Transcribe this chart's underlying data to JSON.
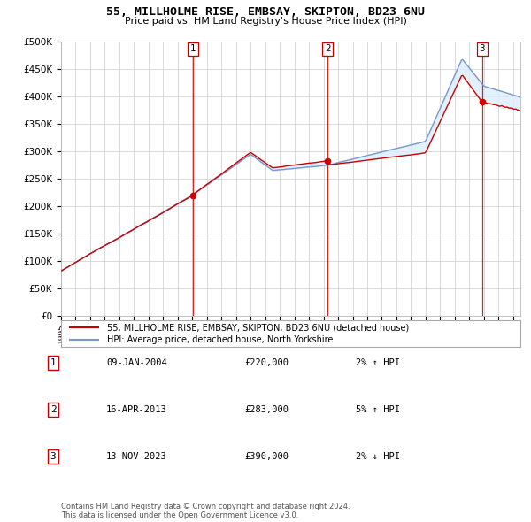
{
  "title_line1": "55, MILLHOLME RISE, EMBSAY, SKIPTON, BD23 6NU",
  "title_line2": "Price paid vs. HM Land Registry's House Price Index (HPI)",
  "legend_line1": "55, MILLHOLME RISE, EMBSAY, SKIPTON, BD23 6NU (detached house)",
  "legend_line2": "HPI: Average price, detached house, North Yorkshire",
  "table_rows": [
    [
      "1",
      "09-JAN-2004",
      "£220,000",
      "2% ↑ HPI"
    ],
    [
      "2",
      "16-APR-2013",
      "£283,000",
      "5% ↑ HPI"
    ],
    [
      "3",
      "13-NOV-2023",
      "£390,000",
      "2% ↓ HPI"
    ]
  ],
  "footer": "Contains HM Land Registry data © Crown copyright and database right 2024.\nThis data is licensed under the Open Government Licence v3.0.",
  "ylim": [
    0,
    500000
  ],
  "yticks": [
    0,
    50000,
    100000,
    150000,
    200000,
    250000,
    300000,
    350000,
    400000,
    450000,
    500000
  ],
  "price_line_color": "#cc0000",
  "hpi_line_color": "#7799cc",
  "hpi_fill_color": "#ddeeff",
  "vline_color": "#cc0000",
  "background_color": "#ffffff",
  "grid_color": "#cccccc",
  "xmin": 1995,
  "xmax": 2026.5,
  "transactions": [
    {
      "label": "1",
      "x": 2004.04,
      "price": 220000
    },
    {
      "label": "2",
      "x": 2013.29,
      "price": 283000
    },
    {
      "label": "3",
      "x": 2023.87,
      "price": 390000
    }
  ]
}
